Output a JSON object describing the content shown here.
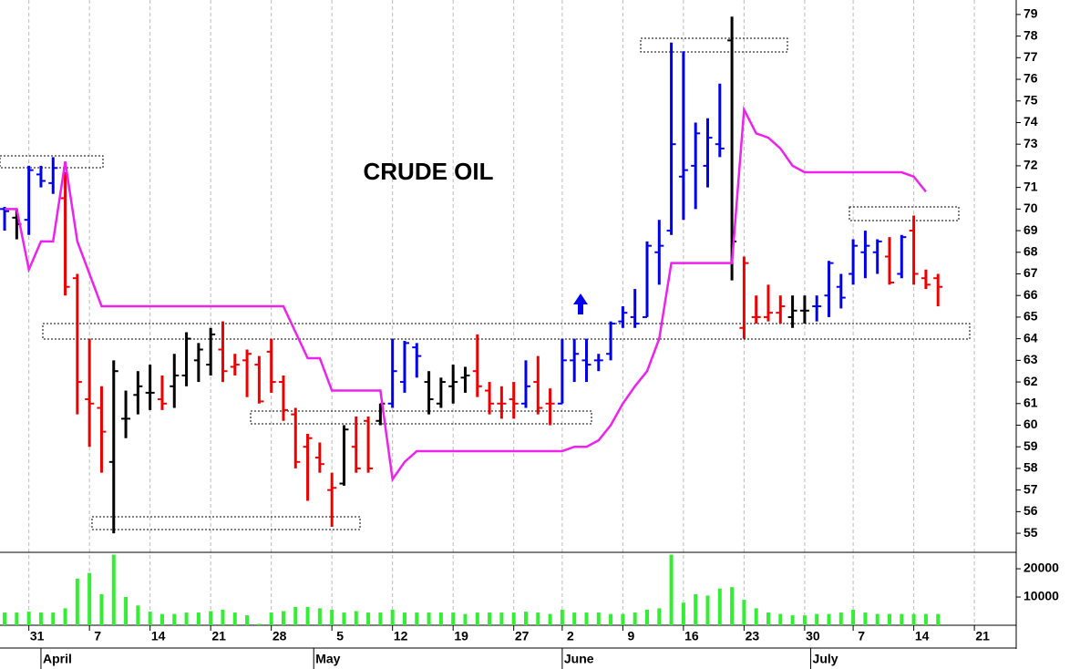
{
  "chart_data": [
    {
      "type": "ohlc",
      "title": "CRUDE OIL",
      "xlim": [
        -0.38,
        83.45
      ],
      "ylim": [
        54.16,
        79.67
      ],
      "yticks": [
        55,
        56,
        57,
        58,
        59,
        60,
        61,
        62,
        63,
        64,
        65,
        66,
        67,
        68,
        69,
        70,
        71,
        72,
        73,
        74,
        75,
        76,
        77,
        78,
        79
      ],
      "open": [
        70,
        69.6,
        69.5,
        71.6,
        71.2,
        70.5,
        66.8,
        61.2,
        60.8,
        58.3,
        60.3,
        61.4,
        61.5,
        61.2,
        61.8,
        62.3,
        63,
        62.8,
        63.5,
        62.7,
        63,
        62.8,
        63.4,
        62,
        60.5,
        59,
        58.5,
        57,
        57.3,
        59,
        60.2,
        60.2,
        61,
        62,
        63.6,
        62,
        61,
        61.8,
        62.2,
        62.5,
        61.6,
        61,
        61.2,
        61,
        62,
        61,
        61,
        63,
        63,
        63,
        63.3,
        64.8,
        65,
        65,
        68,
        69,
        71.5,
        72,
        72,
        73,
        77.8,
        64.5,
        65,
        65,
        65.2,
        65,
        65.3,
        65.5,
        66,
        66.4,
        67,
        68,
        68,
        67.8,
        67,
        69,
        66.8,
        66.8
      ],
      "high": [
        70.1,
        70,
        72,
        72,
        72.4,
        71.7,
        67,
        64,
        61.8,
        63,
        61.6,
        62.5,
        62.8,
        62.3,
        63.3,
        64.3,
        63.8,
        64.5,
        64.8,
        63.3,
        63.5,
        63.2,
        64,
        62.3,
        60.8,
        59.6,
        59.2,
        57.8,
        60,
        60.4,
        60.4,
        61,
        64,
        63.9,
        63.8,
        62.5,
        62.2,
        62.8,
        62.7,
        64.2,
        62,
        61.8,
        62,
        63,
        63.2,
        61.7,
        64,
        64,
        64,
        63.3,
        64.8,
        65.5,
        66.3,
        68.5,
        69.5,
        77.7,
        77.3,
        74,
        74.2,
        75.8,
        78.9,
        67.8,
        66,
        66.5,
        66,
        66,
        66,
        66,
        67.6,
        67,
        68.6,
        69,
        68.6,
        68.7,
        68.8,
        69.7,
        67.2,
        67
      ],
      "low": [
        69,
        68.6,
        68.8,
        71,
        70.7,
        66,
        60.5,
        59,
        57.8,
        55,
        59.4,
        60.5,
        60.7,
        60.7,
        60.8,
        61.8,
        62,
        62.3,
        62,
        62.3,
        61.3,
        61,
        61.5,
        60.2,
        58,
        56.5,
        57.8,
        55.3,
        57.2,
        57.8,
        57.8,
        60,
        60.8,
        61.5,
        62.2,
        60.5,
        60.8,
        61,
        61.5,
        61.3,
        60.5,
        60.3,
        60.3,
        60.8,
        60.5,
        60,
        61,
        62,
        62,
        62.5,
        63,
        64.5,
        64.5,
        65,
        66.5,
        68.8,
        69.5,
        70,
        71,
        72.4,
        66.7,
        64,
        64.7,
        64.8,
        64.7,
        64.5,
        64.7,
        64.8,
        65,
        65.4,
        66.5,
        66.8,
        67,
        66.5,
        66.8,
        66.5,
        66.3,
        65.5
      ],
      "close": [
        69.9,
        69.3,
        71.8,
        71.3,
        71.9,
        66.4,
        62,
        61,
        59.7,
        62.5,
        60.3,
        61.8,
        61.5,
        61,
        62.3,
        64,
        63.5,
        64.2,
        62.5,
        62.8,
        63.3,
        61.1,
        62,
        60.7,
        58.3,
        59.4,
        58.2,
        57.1,
        59.8,
        58,
        58,
        61,
        62.5,
        63.8,
        63.2,
        61.2,
        62,
        62,
        62.3,
        61.8,
        61,
        61,
        61,
        61.8,
        60.8,
        61,
        63,
        63.3,
        62.8,
        63,
        64.7,
        65.2,
        64.7,
        68.3,
        68.3,
        73,
        71.8,
        73.5,
        73.3,
        72.8,
        68.5,
        67.5,
        65,
        65.2,
        65.5,
        65.3,
        65.3,
        65.5,
        67.5,
        65.9,
        68.3,
        68.3,
        68.5,
        66.6,
        68.7,
        67,
        66.5,
        66.4
      ],
      "colors": [
        "#0000ee",
        "#000000",
        "#0000ee",
        "#0000ee",
        "#0000ee",
        "#ee0000",
        "#ee0000",
        "#ee0000",
        "#ee0000",
        "#000000",
        "#000000",
        "#000000",
        "#000000",
        "#ee0000",
        "#000000",
        "#000000",
        "#000000",
        "#000000",
        "#ee0000",
        "#ee0000",
        "#ee0000",
        "#ee0000",
        "#ee0000",
        "#ee0000",
        "#ee0000",
        "#ee0000",
        "#ee0000",
        "#ee0000",
        "#000000",
        "#ee0000",
        "#ee0000",
        "#000000",
        "#0000ee",
        "#0000ee",
        "#0000ee",
        "#000000",
        "#000000",
        "#000000",
        "#000000",
        "#ee0000",
        "#ee0000",
        "#ee0000",
        "#ee0000",
        "#0000ee",
        "#ee0000",
        "#ee0000",
        "#0000ee",
        "#0000ee",
        "#0000ee",
        "#0000ee",
        "#0000ee",
        "#0000ee",
        "#0000ee",
        "#0000ee",
        "#0000ee",
        "#0000ee",
        "#0000ee",
        "#0000ee",
        "#0000ee",
        "#0000ee",
        "#000000",
        "#ee0000",
        "#ee0000",
        "#ee0000",
        "#ee0000",
        "#000000",
        "#000000",
        "#0000ee",
        "#0000ee",
        "#0000ee",
        "#0000ee",
        "#0000ee",
        "#0000ee",
        "#ee0000",
        "#0000ee",
        "#ee0000",
        "#ee0000",
        "#ee0000"
      ],
      "line": {
        "color": "#ee22ee",
        "values": [
          70,
          70,
          67.2,
          68.5,
          68.5,
          72.2,
          68.5,
          67,
          65.5,
          65.5,
          65.5,
          65.5,
          65.5,
          65.5,
          65.5,
          65.5,
          65.5,
          65.5,
          65.5,
          65.5,
          65.5,
          65.5,
          65.5,
          65.5,
          64.3,
          63.1,
          63.1,
          61.6,
          61.6,
          61.6,
          61.6,
          61.6,
          57.5,
          58.3,
          58.8,
          58.8,
          58.8,
          58.8,
          58.8,
          58.8,
          58.8,
          58.8,
          58.8,
          58.8,
          58.8,
          58.8,
          58.8,
          59,
          59,
          59.3,
          60,
          61,
          61.8,
          62.5,
          64,
          67.5,
          67.5,
          67.5,
          67.5,
          67.5,
          67.5,
          74.6,
          73.5,
          73.3,
          72.8,
          72,
          71.7,
          71.7,
          71.7,
          71.7,
          71.7,
          71.7,
          71.7,
          71.7,
          71.7,
          71.5,
          70.8,
          null
        ]
      }
    },
    {
      "type": "bar",
      "color": "#33ee33",
      "xlim": [
        -0.38,
        83.45
      ],
      "ylim": [
        0,
        25500
      ],
      "yticks": [
        10000,
        20000
      ],
      "values": [
        4500,
        4500,
        4800,
        4500,
        4500,
        6000,
        16500,
        18500,
        11000,
        25000,
        10000,
        7000,
        4800,
        4000,
        4000,
        4500,
        4500,
        5000,
        5500,
        4500,
        3500,
        500,
        4500,
        5000,
        6500,
        6500,
        6000,
        5500,
        4500,
        5000,
        4500,
        4500,
        5500,
        4500,
        4500,
        4500,
        4500,
        4500,
        4000,
        4500,
        4500,
        4500,
        4500,
        4800,
        4500,
        4000,
        5500,
        4500,
        4500,
        4500,
        4000,
        4000,
        4500,
        5500,
        6000,
        25000,
        8000,
        11000,
        10500,
        13000,
        13500,
        9000,
        6000,
        4500,
        4000,
        3500,
        3500,
        4000,
        4000,
        4500,
        5500,
        4500,
        4000,
        4000,
        4000,
        4000,
        4000,
        4000
      ],
      "xticks": [
        {
          "value": 2,
          "label": "31"
        },
        {
          "value": 7,
          "label": "7"
        },
        {
          "value": 12,
          "label": "14"
        },
        {
          "value": 17,
          "label": "21"
        },
        {
          "value": 22,
          "label": "28"
        },
        {
          "value": 27,
          "label": "5"
        },
        {
          "value": 32,
          "label": "12"
        },
        {
          "value": 37,
          "label": "19"
        },
        {
          "value": 42,
          "label": "27"
        },
        {
          "value": 46,
          "label": "2"
        },
        {
          "value": 51,
          "label": "9"
        },
        {
          "value": 56,
          "label": "16"
        },
        {
          "value": 61,
          "label": "23"
        },
        {
          "value": 66,
          "label": "30"
        },
        {
          "value": 70,
          "label": "7"
        },
        {
          "value": 75,
          "label": "14"
        },
        {
          "value": 80,
          "label": "21"
        }
      ],
      "months": [
        {
          "value": 3,
          "label": "April"
        },
        {
          "value": 25.5,
          "label": "May"
        },
        {
          "value": 46,
          "label": "June"
        },
        {
          "value": 66.5,
          "label": "July"
        }
      ]
    }
  ]
}
